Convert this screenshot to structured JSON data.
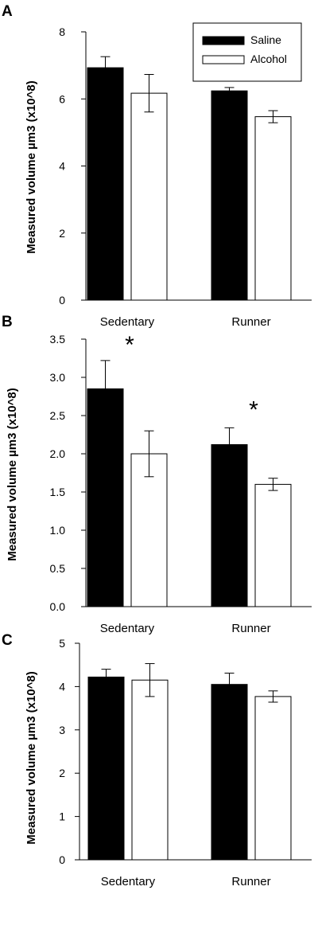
{
  "chart_data": [
    {
      "panel": "A",
      "type": "bar",
      "ylabel": "Measured volume µm3 (x10^8)",
      "categories": [
        "Sedentary",
        "Runner"
      ],
      "ylim": [
        0,
        8
      ],
      "yticks": [
        "0",
        "2",
        "4",
        "6",
        "8"
      ],
      "series": [
        {
          "name": "Saline",
          "color": "#000000",
          "values": [
            6.93,
            6.24
          ],
          "errors": [
            0.33,
            0.1
          ]
        },
        {
          "name": "Alcohol",
          "color": "#ffffff",
          "values": [
            6.17,
            5.47
          ],
          "errors": [
            0.56,
            0.18
          ]
        }
      ],
      "legend": {
        "position": "top-right",
        "entries": [
          "Saline",
          "Alcohol"
        ]
      },
      "annotations": []
    },
    {
      "panel": "B",
      "type": "bar",
      "ylabel": "Measured volume µm3 (x10^8)",
      "categories": [
        "Sedentary",
        "Runner"
      ],
      "ylim": [
        0,
        3.5
      ],
      "yticks": [
        "0.0",
        "0.5",
        "1.0",
        "1.5",
        "2.0",
        "2.5",
        "3.0",
        "3.5"
      ],
      "series": [
        {
          "name": "Saline",
          "color": "#000000",
          "values": [
            2.85,
            2.12
          ],
          "errors": [
            0.37,
            0.22
          ]
        },
        {
          "name": "Alcohol",
          "color": "#ffffff",
          "values": [
            2.0,
            1.6
          ],
          "errors": [
            0.3,
            0.08
          ]
        }
      ],
      "annotations": [
        {
          "text": "*",
          "category": "Sedentary",
          "value": 3.45
        },
        {
          "text": "*",
          "category": "Runner",
          "value": 2.6
        }
      ]
    },
    {
      "panel": "C",
      "type": "bar",
      "ylabel": "Measured volume µm3 (x10^8)",
      "categories": [
        "Sedentary",
        "Runner"
      ],
      "ylim": [
        0,
        5
      ],
      "yticks": [
        "0",
        "1",
        "2",
        "3",
        "4",
        "5"
      ],
      "series": [
        {
          "name": "Saline",
          "color": "#000000",
          "values": [
            4.22,
            4.05
          ],
          "errors": [
            0.18,
            0.26
          ]
        },
        {
          "name": "Alcohol",
          "color": "#ffffff",
          "values": [
            4.15,
            3.77
          ],
          "errors": [
            0.38,
            0.13
          ]
        }
      ],
      "annotations": []
    }
  ]
}
